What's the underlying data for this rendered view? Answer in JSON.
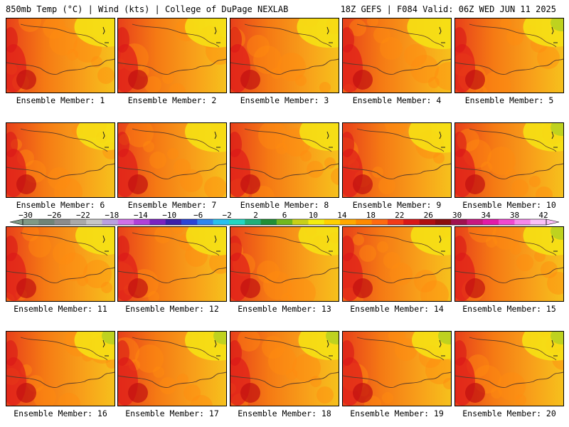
{
  "header": {
    "left": "850mb Temp (°C) | Wind (kts) | College of DuPage NEXLAB",
    "right": "18Z GEFS | F084 Valid: 06Z WED JUN 11 2025"
  },
  "members": [
    {
      "label": "Ensemble Member: 1",
      "level": 0.55
    },
    {
      "label": "Ensemble Member: 2",
      "level": 0.6
    },
    {
      "label": "Ensemble Member: 3",
      "level": 0.62
    },
    {
      "label": "Ensemble Member: 4",
      "level": 0.72
    },
    {
      "label": "Ensemble Member: 5",
      "level": 0.55
    },
    {
      "label": "Ensemble Member: 6",
      "level": 0.45
    },
    {
      "label": "Ensemble Member: 7",
      "level": 0.6
    },
    {
      "label": "Ensemble Member: 8",
      "level": 0.5
    },
    {
      "label": "Ensemble Member: 9",
      "level": 0.65
    },
    {
      "label": "Ensemble Member: 10",
      "level": 0.55
    },
    {
      "label": "Ensemble Member: 11",
      "level": 0.5
    },
    {
      "label": "Ensemble Member: 12",
      "level": 0.55
    },
    {
      "label": "Ensemble Member: 13",
      "level": 0.55
    },
    {
      "label": "Ensemble Member: 14",
      "level": 0.55
    },
    {
      "label": "Ensemble Member: 15",
      "level": 0.55
    },
    {
      "label": "Ensemble Member: 16",
      "level": 0.55
    },
    {
      "label": "Ensemble Member: 17",
      "level": 0.6
    },
    {
      "label": "Ensemble Member: 18",
      "level": 0.55
    },
    {
      "label": "Ensemble Member: 19",
      "level": 0.5
    },
    {
      "label": "Ensemble Member: 20",
      "level": 0.6
    }
  ],
  "colorbar": {
    "ticks": [
      "−30",
      "−26",
      "−22",
      "−18",
      "−14",
      "−10",
      "−6",
      "−2",
      "2",
      "6",
      "10",
      "14",
      "18",
      "22",
      "26",
      "30",
      "34",
      "38",
      "42"
    ],
    "colors": [
      "#7f9a86",
      "#6f8478",
      "#8c8c8c",
      "#a9a9a9",
      "#c6c6c6",
      "#b9a0e0",
      "#d070e8",
      "#b040d8",
      "#7a22c0",
      "#3c1fa8",
      "#2a45d6",
      "#2f86ee",
      "#28c0ee",
      "#22d6c2",
      "#20b07a",
      "#1f8f36",
      "#70b81f",
      "#c8d018",
      "#f4ee10",
      "#ffd000",
      "#ffa800",
      "#ff8a00",
      "#ff6a10",
      "#f23a18",
      "#d81818",
      "#b00f10",
      "#8c0e0e",
      "#a01050",
      "#c81880",
      "#e21aa8",
      "#f048d0",
      "#f688ea",
      "#fac0f8"
    ]
  }
}
